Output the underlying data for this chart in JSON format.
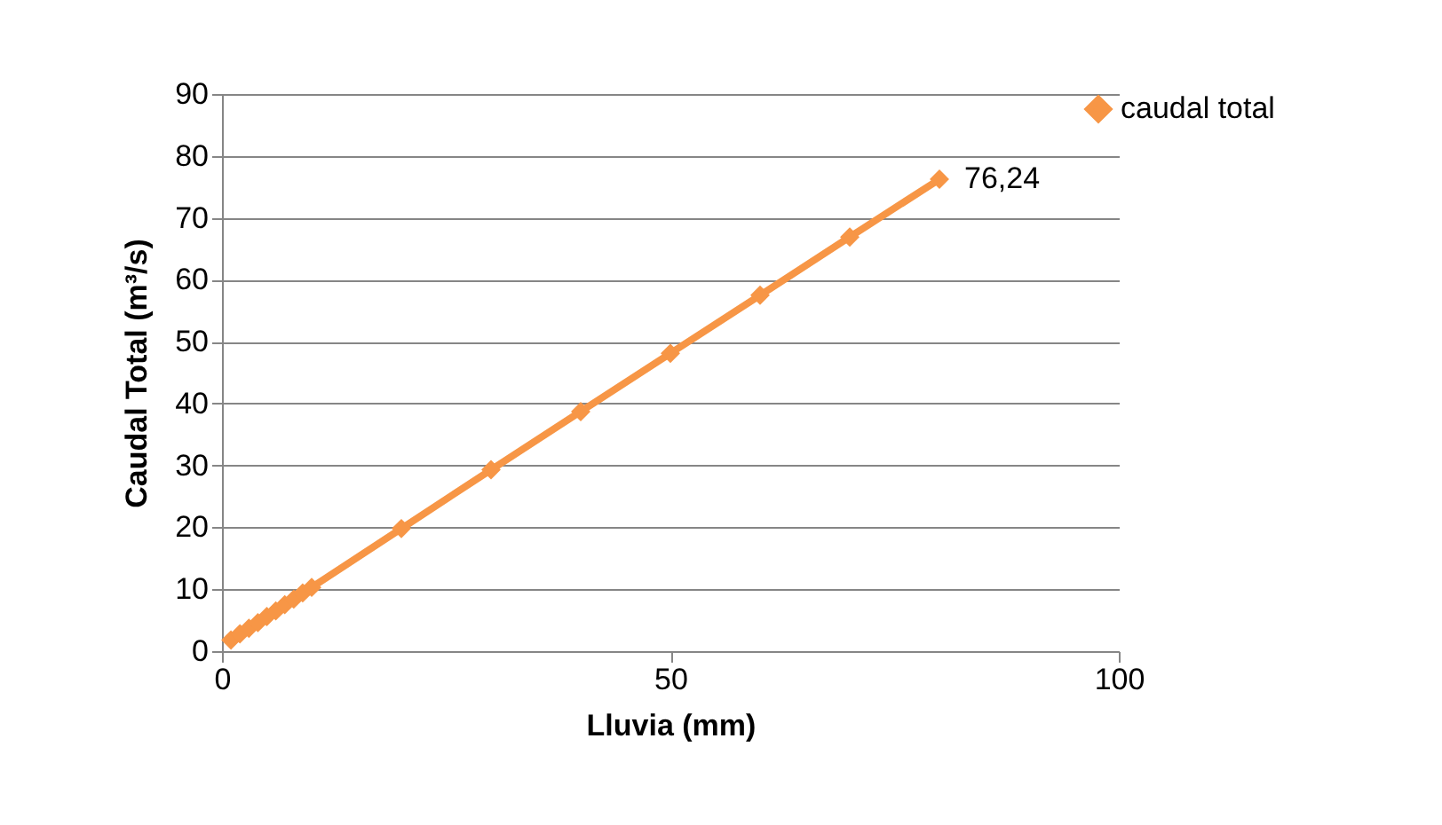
{
  "chart_data": {
    "type": "line",
    "xlabel": "Lluvia (mm)",
    "ylabel": "Caudal Total (m³/s)",
    "x": [
      1,
      2,
      3,
      4,
      5,
      6,
      7,
      8,
      9,
      10,
      20,
      30,
      40,
      50,
      60,
      70,
      80
    ],
    "series": [
      {
        "name": "caudal total",
        "color": "#f79646",
        "values": [
          1.8,
          2.8,
          3.7,
          4.6,
          5.6,
          6.5,
          7.5,
          8.4,
          9.4,
          10.3,
          19.8,
          29.3,
          38.7,
          48.1,
          57.5,
          66.9,
          76.24
        ],
        "value_labels": [
          null,
          null,
          null,
          null,
          null,
          null,
          null,
          null,
          null,
          null,
          null,
          null,
          null,
          null,
          null,
          null,
          "76,24"
        ]
      }
    ],
    "xlim": [
      0,
      100
    ],
    "xticks": [
      0,
      50,
      100
    ],
    "ylim": [
      0,
      90
    ],
    "yticks": [
      0,
      10,
      20,
      30,
      40,
      50,
      60,
      70,
      80,
      90
    ],
    "grid": "y",
    "legend": "right",
    "marker": "diamond",
    "line_style": "solid"
  }
}
